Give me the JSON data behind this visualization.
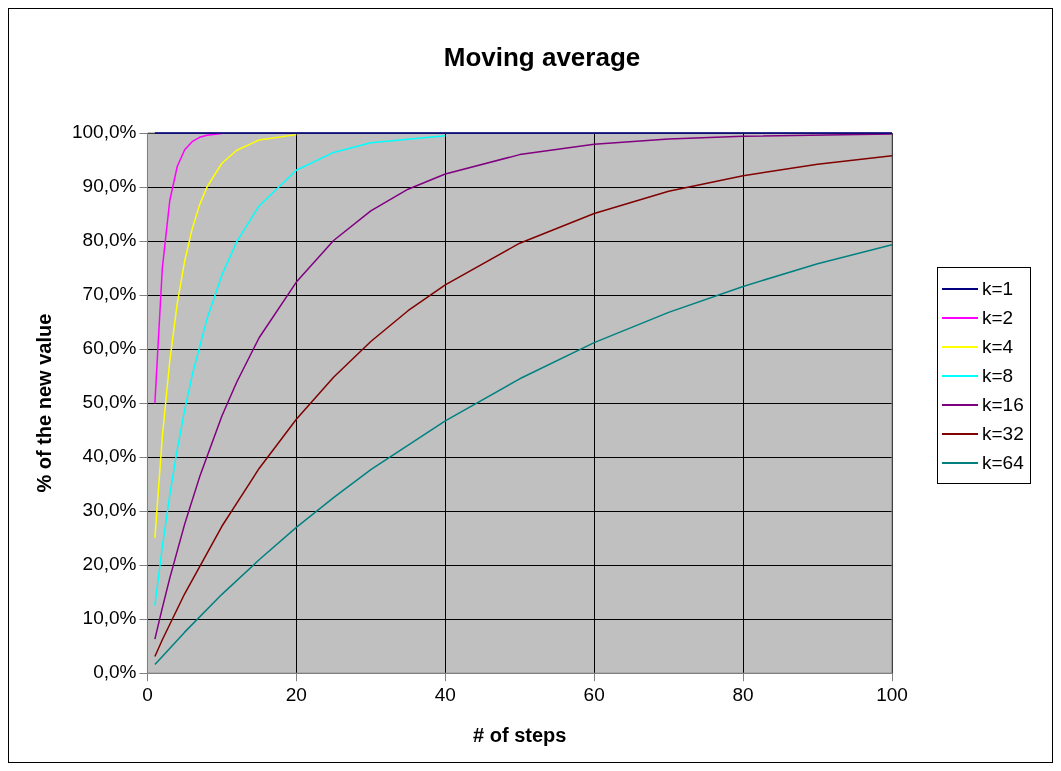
{
  "chart_data": {
    "type": "line",
    "title": "Moving average",
    "xlabel": "# of steps",
    "ylabel": "% of the new value",
    "xlim": [
      0,
      100
    ],
    "xticks": [
      0,
      20,
      40,
      60,
      80,
      100
    ],
    "ylim": [
      0,
      100
    ],
    "yticks": [
      {
        "value": 0,
        "label": "0,0%"
      },
      {
        "value": 10,
        "label": "10,0%"
      },
      {
        "value": 20,
        "label": "20,0%"
      },
      {
        "value": 30,
        "label": "30,0%"
      },
      {
        "value": 40,
        "label": "40,0%"
      },
      {
        "value": 50,
        "label": "50,0%"
      },
      {
        "value": 60,
        "label": "60,0%"
      },
      {
        "value": 70,
        "label": "70,0%"
      },
      {
        "value": 80,
        "label": "80,0%"
      },
      {
        "value": 90,
        "label": "90,0%"
      },
      {
        "value": 100,
        "label": "100,0%"
      }
    ],
    "grid": true,
    "legend": "right",
    "marker": "none",
    "line_style": "solid",
    "series": [
      {
        "name": "k=1",
        "color": "#000080",
        "x": [
          1,
          100
        ],
        "values": [
          100,
          100
        ]
      },
      {
        "name": "k=2",
        "color": "#ff00ff",
        "x": [
          1,
          2,
          3,
          4,
          5,
          6,
          7,
          8,
          10
        ],
        "values": [
          50,
          75,
          87.5,
          93.8,
          96.9,
          98.4,
          99.2,
          99.6,
          99.9
        ]
      },
      {
        "name": "k=4",
        "color": "#ffff00",
        "x": [
          1,
          2,
          3,
          4,
          5,
          6,
          7,
          8,
          10,
          12,
          15,
          20
        ],
        "values": [
          25,
          43.8,
          57.8,
          68.4,
          76.3,
          82.2,
          86.7,
          90,
          94.4,
          96.8,
          98.7,
          99.7
        ]
      },
      {
        "name": "k=8",
        "color": "#00ffff",
        "x": [
          1,
          2,
          3,
          4,
          5,
          6,
          8,
          10,
          12,
          15,
          20,
          25,
          30,
          40
        ],
        "values": [
          12.5,
          23.4,
          33,
          41.4,
          48.7,
          55.1,
          65.6,
          73.7,
          79.9,
          86.5,
          93.1,
          96.4,
          98.2,
          99.5
        ]
      },
      {
        "name": "k=16",
        "color": "#800080",
        "x": [
          1,
          2,
          3,
          5,
          7,
          10,
          12,
          15,
          20,
          25,
          30,
          35,
          40,
          50,
          60,
          70,
          80,
          100
        ],
        "values": [
          6.3,
          12.1,
          17.6,
          27.6,
          36.3,
          47.6,
          53.9,
          62.1,
          72.4,
          80.1,
          85.6,
          89.6,
          92.4,
          96,
          97.9,
          98.9,
          99.4,
          99.8
        ]
      },
      {
        "name": "k=32",
        "color": "#800000",
        "x": [
          1,
          2,
          5,
          10,
          15,
          20,
          25,
          30,
          35,
          40,
          50,
          60,
          70,
          80,
          90,
          100
        ],
        "values": [
          3.1,
          6.2,
          14.7,
          27.2,
          37.9,
          47,
          54.8,
          61.4,
          67.1,
          71.9,
          79.6,
          85.1,
          89.2,
          92.1,
          94.2,
          95.8
        ]
      },
      {
        "name": "k=64",
        "color": "#008080",
        "x": [
          1,
          2,
          5,
          10,
          15,
          20,
          25,
          30,
          40,
          50,
          60,
          70,
          80,
          90,
          100
        ],
        "values": [
          1.6,
          3.1,
          7.6,
          14.6,
          21,
          27,
          32.5,
          37.7,
          46.7,
          54.5,
          61.2,
          66.8,
          71.6,
          75.8,
          79.3
        ]
      }
    ]
  }
}
